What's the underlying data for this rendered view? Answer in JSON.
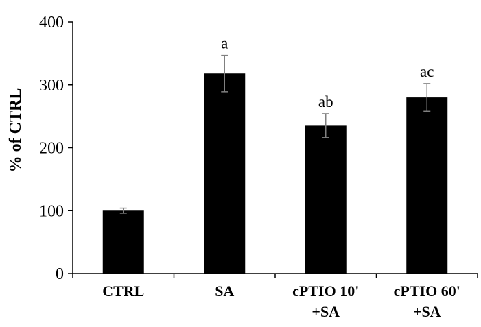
{
  "chart_data": {
    "type": "bar",
    "title": "",
    "xlabel": "",
    "ylabel": "% of CTRL",
    "ylim": [
      0,
      400
    ],
    "yticks": [
      0,
      100,
      200,
      300,
      400
    ],
    "grid": false,
    "categories": [
      [
        "CTRL"
      ],
      [
        "SA"
      ],
      [
        "cPTIO 10'",
        "+SA"
      ],
      [
        "cPTIO 60'",
        "+SA"
      ]
    ],
    "values": [
      100,
      318,
      235,
      280
    ],
    "errors": [
      4,
      29,
      19,
      22
    ],
    "annotations": [
      "",
      "a",
      "ab",
      "ac"
    ],
    "bar_color": "#000000",
    "error_color": "#808080"
  }
}
